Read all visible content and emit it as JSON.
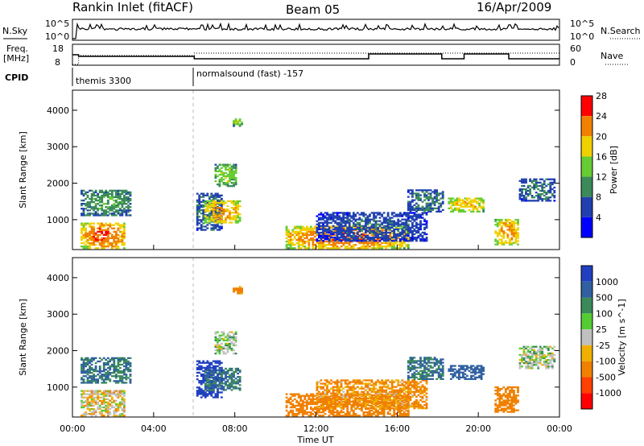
{
  "header": {
    "station": "Rankin Inlet (fitACF)",
    "beam": "Beam 05",
    "date": "16/Apr/2009"
  },
  "noise_panel": {
    "left_label": "N.Sky",
    "left_ticks": [
      "10^5",
      "10^0"
    ],
    "right_label": "N.Search",
    "right_ticks": [
      "10^5",
      "10^0"
    ]
  },
  "freq_panel": {
    "left_label_line1": "Freq.",
    "left_label_line2": "[MHz]",
    "left_ticks": [
      "18",
      "8"
    ],
    "right_label": "Nave",
    "right_ticks": [
      "60",
      "0"
    ]
  },
  "cpid_panel": {
    "label": "CPID",
    "modes": [
      "themis 3300",
      "normalsound (fast) -157"
    ]
  },
  "time_axis": {
    "label": "Time UT",
    "ticks": [
      "00:00",
      "04:00",
      "08:00",
      "12:00",
      "16:00",
      "20:00",
      "00:00"
    ]
  },
  "range_ticks": [
    "1000",
    "2000",
    "3000",
    "4000"
  ],
  "power_panel": {
    "ylabel": "Slant Range [km]",
    "colorbar_label": "Power [dB]",
    "colorbar_ticks": [
      "4",
      "8",
      "12",
      "16",
      "20",
      "24",
      "28"
    ],
    "colors": [
      "#0000ff",
      "#2040b0",
      "#3a8a5a",
      "#66cc33",
      "#f0d000",
      "#f08000",
      "#ff0000"
    ]
  },
  "velocity_panel": {
    "ylabel": "Slant Range [km]",
    "colorbar_label": "Velocity [m s^-1]",
    "colorbar_ticks": [
      "1000",
      "500",
      "100",
      "25",
      "-25",
      "-100",
      "-500",
      "-1000"
    ],
    "colors": [
      "#2040c0",
      "#3060a0",
      "#3a8a5a",
      "#55cc33",
      "#c0c0c0",
      "#f0b000",
      "#f08000",
      "#ff4000",
      "#ff0000"
    ]
  },
  "chart_data": {
    "type": "heatmap",
    "title": "Rankin Inlet (fitACF)  Beam 05  16/Apr/2009",
    "xlabel": "Time UT",
    "ylabel": "Slant Range [km]",
    "xlim": [
      0,
      24
    ],
    "ylim": [
      180,
      4550
    ],
    "power_scale": [
      3,
      30
    ],
    "velocity_scale": [
      -1000,
      1000
    ],
    "echo_regions": [
      {
        "t": [
          0.4,
          2.6
        ],
        "r": [
          200,
          900
        ],
        "power": 26,
        "velocity": -20
      },
      {
        "t": [
          0.4,
          2.9
        ],
        "r": [
          1100,
          1800
        ],
        "power": 14,
        "velocity": 300
      },
      {
        "t": [
          6.1,
          7.3
        ],
        "r": [
          700,
          1700
        ],
        "power": 12,
        "velocity": 1000
      },
      {
        "t": [
          6.5,
          8.2
        ],
        "r": [
          900,
          1500
        ],
        "power": 24,
        "velocity": 300
      },
      {
        "t": [
          7.0,
          8.0
        ],
        "r": [
          1900,
          2500
        ],
        "power": 18,
        "velocity": 20
      },
      {
        "t": [
          7.9,
          8.3
        ],
        "r": [
          3550,
          3750
        ],
        "power": 18,
        "velocity": -100
      },
      {
        "t": [
          10.5,
          16.5
        ],
        "r": [
          200,
          800
        ],
        "power": 26,
        "velocity": -150
      },
      {
        "t": [
          12.0,
          17.5
        ],
        "r": [
          400,
          1200
        ],
        "power": 10,
        "velocity": -80
      },
      {
        "t": [
          16.5,
          18.3
        ],
        "r": [
          1200,
          1800
        ],
        "power": 12,
        "velocity": 300
      },
      {
        "t": [
          18.5,
          20.3
        ],
        "r": [
          1200,
          1600
        ],
        "power": 22,
        "velocity": 500
      },
      {
        "t": [
          20.8,
          22.0
        ],
        "r": [
          300,
          1000
        ],
        "power": 24,
        "velocity": -150
      },
      {
        "t": [
          22.0,
          23.8
        ],
        "r": [
          1500,
          2100
        ],
        "power": 12,
        "velocity": 20
      }
    ],
    "nsky_level": "10^3",
    "freq_mhz": [
      10,
      10.5,
      11.5
    ],
    "cpid_switch_time": 6.0
  }
}
